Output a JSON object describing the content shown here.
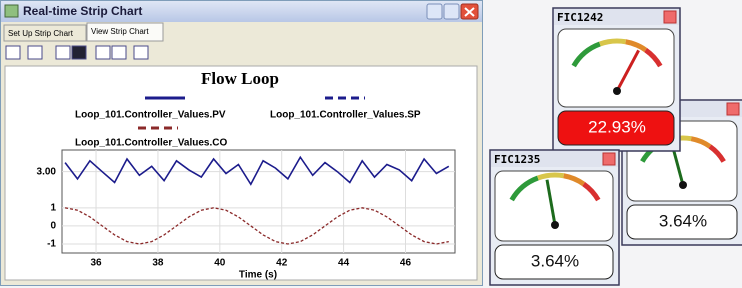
{
  "window": {
    "title": "Real-time Strip Chart",
    "tabs": [
      "Set Up Strip Chart",
      "View Strip Chart"
    ]
  },
  "chart_data": {
    "type": "line",
    "title": "Flow Loop",
    "xlabel": "Time (s)",
    "x": [
      35.0,
      35.4,
      35.8,
      36.2,
      36.6,
      37.0,
      37.4,
      37.8,
      38.2,
      38.6,
      39.0,
      39.4,
      39.8,
      40.2,
      40.6,
      41.0,
      41.4,
      41.8,
      42.2,
      42.6,
      43.0,
      43.4,
      43.8,
      44.2,
      44.6,
      45.0,
      45.4,
      45.8,
      46.2,
      46.6,
      47.0,
      47.4
    ],
    "series": [
      {
        "name": "Loop_101.Controller_Values.PV",
        "color": "#1c1c8c",
        "dash": false,
        "values": [
          3.5,
          2.6,
          3.6,
          3.0,
          2.4,
          3.7,
          2.8,
          3.3,
          2.5,
          3.6,
          3.1,
          2.7,
          3.7,
          2.9,
          3.4,
          2.3,
          3.6,
          3.2,
          2.6,
          3.8,
          2.8,
          3.5,
          3.0,
          2.4,
          3.6,
          2.7,
          3.4,
          3.1,
          2.5,
          3.7,
          2.9,
          3.3
        ]
      },
      {
        "name": "Loop_101.Controller_Values.SP",
        "color": "#1c1c8c",
        "dash": true,
        "values": [
          null,
          null,
          null,
          null,
          null,
          null,
          null,
          null,
          null,
          null,
          null,
          null,
          null,
          null,
          null,
          null,
          null,
          null,
          null,
          null,
          null,
          null,
          null,
          null,
          null,
          null,
          null,
          null,
          null,
          null,
          null,
          null
        ]
      },
      {
        "name": "Loop_101.Controller_Values.CO",
        "color": "#8b2a2a",
        "dash": true,
        "values": [
          1,
          0.87,
          0.5,
          0,
          -0.5,
          -0.87,
          -1,
          -0.87,
          -0.5,
          0,
          0.5,
          0.87,
          1,
          0.87,
          0.5,
          0,
          -0.5,
          -0.87,
          -1,
          -0.87,
          -0.5,
          0,
          0.5,
          0.87,
          1,
          0.87,
          0.5,
          0,
          -0.5,
          -0.87,
          -1,
          -0.87
        ]
      }
    ],
    "xlim": [
      34.9,
      47.6
    ],
    "xticks": [
      36,
      38,
      40,
      42,
      44,
      46
    ],
    "ylim": [
      -1.5,
      4.2
    ],
    "yticks": [
      {
        "value": 3,
        "label": "3.00"
      },
      1,
      0,
      -1
    ],
    "grid": true
  },
  "gauges": [
    {
      "value_label": "3.64%"
    },
    {
      "tag": "FIC1242",
      "value_label": "22.93%"
    },
    {
      "tag": "FIC1235",
      "value_label": "3.64%"
    }
  ]
}
